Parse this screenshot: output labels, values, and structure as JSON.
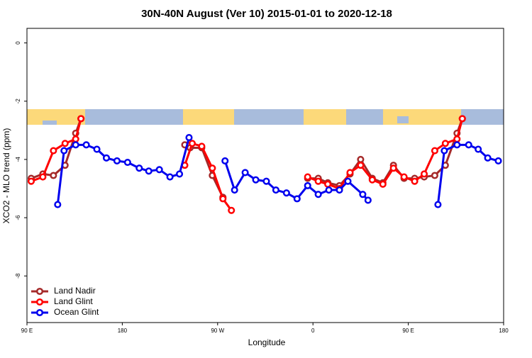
{
  "chart_data": {
    "type": "line",
    "title": "30N-40N August (Ver 10)   2015-01-01 to 2020-12-18",
    "x_label": "Longitude",
    "y_label": "XCO2 - MLO trend (ppm)",
    "xlim": [
      90,
      540
    ],
    "xticks": [
      {
        "value": 90,
        "label": "90 E"
      },
      {
        "value": 180,
        "label": "180"
      },
      {
        "value": 270,
        "label": "90 W"
      },
      {
        "value": 360,
        "label": "0"
      },
      {
        "value": 450,
        "label": "90 E"
      },
      {
        "value": 540,
        "label": "180"
      }
    ],
    "ylim": [
      -9.6,
      0.5
    ],
    "yticks": [
      0,
      -2,
      -4,
      -6,
      -8
    ],
    "legend": "bottom-left",
    "series": [
      {
        "name": "Land Nadir",
        "color": "#a52a2a",
        "x": [
          94,
          105,
          115,
          126,
          136,
          141,
          null,
          239,
          244,
          255,
          265,
          275,
          null,
          355,
          365,
          374,
          385,
          395,
          405,
          416,
          426,
          436,
          446,
          456,
          465,
          475,
          485,
          496,
          501
        ],
        "values": [
          -4.65,
          -4.5,
          -4.55,
          -4.2,
          -3.1,
          -2.6,
          null,
          -3.5,
          -3.6,
          -3.6,
          -4.55,
          -5.3,
          null,
          -4.65,
          -4.65,
          -4.8,
          -4.9,
          -4.5,
          -4.0,
          -4.65,
          -4.8,
          -4.2,
          -4.65,
          -4.65,
          -4.6,
          -4.55,
          -4.2,
          -3.1,
          -2.6
        ]
      },
      {
        "name": "Land Glint",
        "color": "#ff0000",
        "x": [
          94,
          105,
          115,
          126,
          136,
          141,
          null,
          239,
          246,
          255,
          265,
          275,
          283,
          null,
          355,
          365,
          374,
          385,
          395,
          405,
          416,
          426,
          436,
          446,
          456,
          465,
          475,
          485,
          496,
          501
        ],
        "values": [
          -4.75,
          -4.6,
          -3.7,
          -3.45,
          -3.3,
          -2.6,
          null,
          -4.2,
          -3.45,
          -3.55,
          -4.3,
          -5.35,
          -5.75,
          null,
          -4.6,
          -4.75,
          -4.85,
          -5.0,
          -4.45,
          -4.2,
          -4.7,
          -4.85,
          -4.3,
          -4.6,
          -4.75,
          -4.5,
          -3.7,
          -3.45,
          -3.3,
          -2.6
        ]
      },
      {
        "name": "Ocean Glint",
        "color": "#0000ee",
        "x": [
          119,
          125,
          136,
          146,
          156,
          165,
          175,
          185,
          196,
          205,
          215,
          225,
          234,
          243,
          null,
          277,
          286,
          296,
          306,
          316,
          325,
          335,
          345,
          355,
          365,
          375,
          385,
          393,
          407,
          412,
          null,
          478,
          484,
          496,
          507,
          516,
          525,
          535
        ],
        "values": [
          -5.55,
          -3.7,
          -3.5,
          -3.5,
          -3.65,
          -3.95,
          -4.05,
          -4.1,
          -4.3,
          -4.4,
          -4.35,
          -4.6,
          -4.5,
          -3.25,
          null,
          -4.05,
          -5.05,
          -4.45,
          -4.7,
          -4.75,
          -5.05,
          -5.15,
          -5.35,
          -4.9,
          -5.2,
          -5.05,
          -5.05,
          -4.75,
          -5.2,
          -5.4,
          null,
          -5.55,
          -3.7,
          -3.5,
          -3.5,
          -3.65,
          -3.95,
          -4.05
        ]
      }
    ]
  }
}
